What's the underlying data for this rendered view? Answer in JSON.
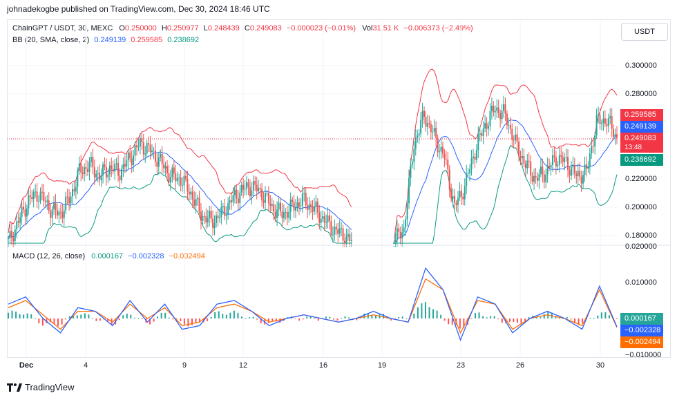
{
  "header": {
    "published": "johnadekogbe published on TradingView.com, Dec 30, 2024 18:46 UTC"
  },
  "currency_button": "USDT",
  "legend": {
    "symbol": "ChainGPT / USDT, 30, MEXC",
    "o_label": "O",
    "o_value": "0.250000",
    "h_label": "H",
    "h_value": "0.250977",
    "l_label": "L",
    "l_value": "0.248439",
    "c_label": "C",
    "c_value": "0.249083",
    "change": "−0.000023 (−0.01%)",
    "vol_label": "Vol",
    "vol_value": "31.51 K",
    "vol_change": "−0.006373 (−2.49%)",
    "bb_label": "BB (20, SMA, close, 2)",
    "bb_basis": "0.249139",
    "bb_upper": "0.259585",
    "bb_lower": "0.238692",
    "macd_label": "MACD (12, 26, close)",
    "macd_hist": "0.000167",
    "macd_line": "−0.002328",
    "macd_signal": "−0.002494"
  },
  "price_axis": [
    "0.300000",
    "0.280000",
    "0.220000",
    "0.200000",
    "0.180000",
    "0.020000"
  ],
  "macd_axis": [
    "0.010000",
    "−0.010000"
  ],
  "badges": {
    "upper": "0.259585",
    "basis": "0.249139",
    "close": "0.249083",
    "countdown": "13:48",
    "lower": "0.238692",
    "hist": "0.000167",
    "macd": "−0.002328",
    "signal": "−0.002494"
  },
  "x_ticks": [
    "Dec",
    "4",
    "9",
    "12",
    "16",
    "19",
    "23",
    "26",
    "30"
  ],
  "footer": {
    "brand": "TradingView"
  },
  "colors": {
    "up": "#26a69a",
    "down": "#ef5350",
    "bb_upper": "#f23645",
    "bb_basis": "#2962ff",
    "bb_lower": "#089981",
    "macd": "#2962ff",
    "signal": "#ff6d00",
    "hist_up": "#26a69a",
    "hist_down": "#ff5252"
  },
  "chart_data": [
    {
      "type": "candlestick",
      "title": "ChainGPT / USDT, 30, MEXC",
      "ylim": [
        0.17,
        0.31
      ],
      "x_ticks": [
        "Dec",
        "4",
        "9",
        "12",
        "16",
        "19",
        "23",
        "26",
        "30"
      ],
      "closes": [
        0.175,
        0.19,
        0.205,
        0.21,
        0.2,
        0.195,
        0.205,
        0.225,
        0.23,
        0.222,
        0.228,
        0.225,
        0.235,
        0.245,
        0.24,
        0.232,
        0.222,
        0.22,
        0.21,
        0.195,
        0.19,
        0.195,
        0.205,
        0.212,
        0.215,
        0.21,
        0.2,
        0.195,
        0.2,
        0.205,
        0.2,
        0.192,
        0.185,
        0.18,
        0.175,
        null,
        null,
        null,
        0.175,
        0.185,
        0.245,
        0.265,
        0.25,
        0.235,
        0.2,
        0.215,
        0.24,
        0.258,
        0.27,
        0.265,
        0.245,
        0.23,
        0.22,
        0.225,
        0.235,
        0.232,
        0.222,
        0.225,
        0.26,
        0.262,
        0.249083
      ],
      "bollinger": {
        "upper": 0.259585,
        "basis": 0.249139,
        "lower": 0.238692
      },
      "last_close": 0.249083
    },
    {
      "type": "line",
      "title": "MACD (12, 26, close)",
      "ylim": [
        -0.012,
        0.02
      ],
      "series": [
        {
          "name": "MACD",
          "values": [
            0.004,
            0.006,
            0.0,
            -0.004,
            0.003,
            0.002,
            -0.002,
            0.005,
            -0.001,
            0.004,
            -0.003,
            -0.002,
            0.004,
            0.005,
            0.002,
            -0.002,
            0.0,
            0.001,
            0.0,
            -0.001,
            0.0,
            0.002,
            0.0,
            -0.001,
            0.014,
            0.008,
            -0.006,
            0.006,
            0.004,
            -0.004,
            0.0,
            0.002,
            0.0,
            -0.003,
            0.009,
            -0.002328
          ]
        },
        {
          "name": "Signal",
          "values": [
            0.003,
            0.005,
            0.001,
            -0.003,
            0.002,
            0.002,
            -0.001,
            0.004,
            0.0,
            0.003,
            -0.002,
            -0.001,
            0.003,
            0.004,
            0.002,
            -0.001,
            0.0,
            0.001,
            0.0,
            -0.001,
            0.0,
            0.001,
            0.0,
            -0.001,
            0.011,
            0.008,
            -0.004,
            0.005,
            0.004,
            -0.003,
            0.0,
            0.001,
            0.0,
            -0.002,
            0.008,
            -0.002494
          ]
        }
      ],
      "histogram_last": 0.000167
    }
  ]
}
